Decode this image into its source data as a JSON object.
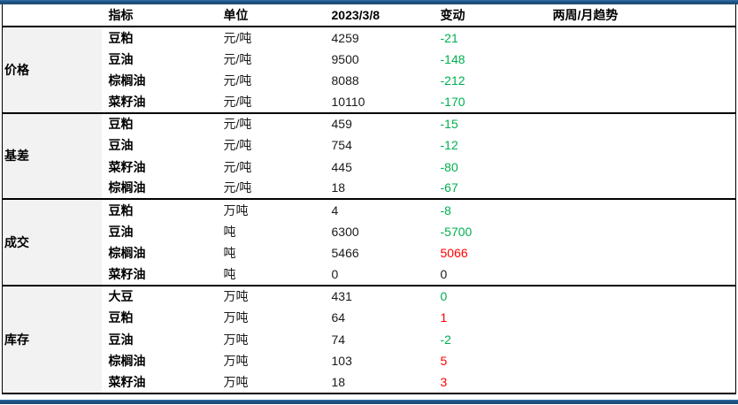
{
  "colors": {
    "red": "#ff0000",
    "green": "#00b050",
    "black": "#1a1a1a",
    "accent_bar": "#1f4e79",
    "group_bg": "#f2f2f2"
  },
  "chart_data": {
    "type": "table",
    "columns": [
      "",
      "指标",
      "单位",
      "2023/3/8",
      "变动",
      "两周/月趋势"
    ],
    "groups": [
      {
        "name": "价格",
        "rows": [
          {
            "indicator": "豆粕",
            "unit": "元/吨",
            "value": "4259",
            "change": "-21",
            "change_color": "green",
            "trend": ""
          },
          {
            "indicator": "豆油",
            "unit": "元/吨",
            "value": "9500",
            "change": "-148",
            "change_color": "green",
            "trend": ""
          },
          {
            "indicator": "棕榈油",
            "unit": "元/吨",
            "value": "8088",
            "change": "-212",
            "change_color": "green",
            "trend": ""
          },
          {
            "indicator": "菜籽油",
            "unit": "元/吨",
            "value": "10110",
            "change": "-170",
            "change_color": "green",
            "trend": ""
          }
        ]
      },
      {
        "name": "基差",
        "rows": [
          {
            "indicator": "豆粕",
            "unit": "元/吨",
            "value": "459",
            "change": "-15",
            "change_color": "green",
            "trend": ""
          },
          {
            "indicator": "豆油",
            "unit": "元/吨",
            "value": "754",
            "change": "-12",
            "change_color": "green",
            "trend": ""
          },
          {
            "indicator": "菜籽油",
            "unit": "元/吨",
            "value": "445",
            "change": "-80",
            "change_color": "green",
            "trend": ""
          },
          {
            "indicator": "棕榈油",
            "unit": "元/吨",
            "value": "18",
            "change": "-67",
            "change_color": "green",
            "trend": ""
          }
        ]
      },
      {
        "name": "成交",
        "rows": [
          {
            "indicator": "豆粕",
            "unit": "万吨",
            "value": "4",
            "change": "-8",
            "change_color": "green",
            "trend": ""
          },
          {
            "indicator": "豆油",
            "unit": "吨",
            "value": "6300",
            "change": "-5700",
            "change_color": "green",
            "trend": ""
          },
          {
            "indicator": "棕榈油",
            "unit": "吨",
            "value": "5466",
            "change": "5066",
            "change_color": "red",
            "trend": ""
          },
          {
            "indicator": "菜籽油",
            "unit": "吨",
            "value": "0",
            "change": "0",
            "change_color": "black",
            "trend": ""
          }
        ]
      },
      {
        "name": "库存",
        "rows": [
          {
            "indicator": "大豆",
            "unit": "万吨",
            "value": "431",
            "change": "0",
            "change_color": "green",
            "trend": ""
          },
          {
            "indicator": "豆粕",
            "unit": "万吨",
            "value": "64",
            "change": "1",
            "change_color": "red",
            "trend": ""
          },
          {
            "indicator": "豆油",
            "unit": "万吨",
            "value": "74",
            "change": "-2",
            "change_color": "green",
            "trend": ""
          },
          {
            "indicator": "棕榈油",
            "unit": "万吨",
            "value": "103",
            "change": "5",
            "change_color": "red",
            "trend": ""
          },
          {
            "indicator": "菜籽油",
            "unit": "万吨",
            "value": "18",
            "change": "3",
            "change_color": "red",
            "trend": ""
          }
        ]
      }
    ]
  }
}
